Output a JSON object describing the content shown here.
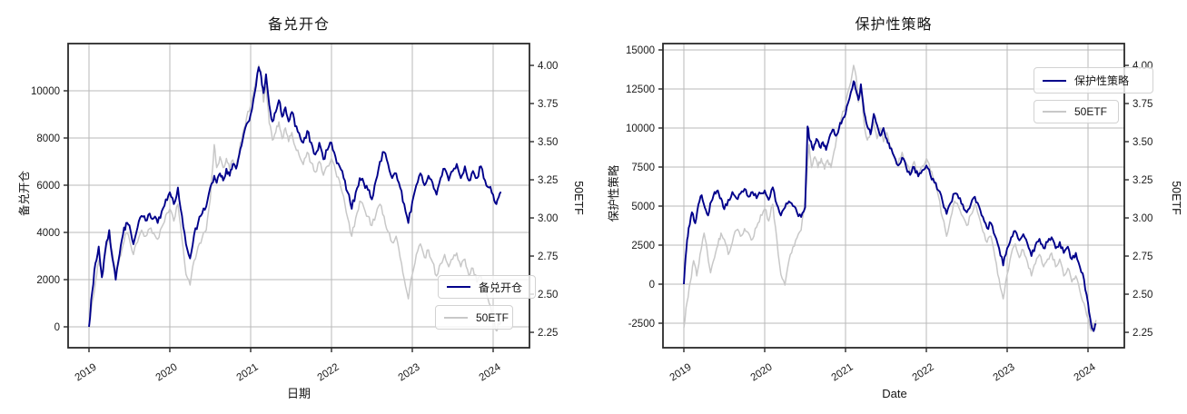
{
  "page": {
    "background": "#ffffff"
  },
  "colors": {
    "strategy_line": "#00008b",
    "etf_line": "#c8c8c8",
    "grid": "#bababa",
    "spine": "#2a2a2a",
    "text": "#1a1a1a"
  },
  "chart_data": [
    {
      "type": "line",
      "title": "备兑开仓",
      "xlabel": "日期",
      "ylabel_left": "备兑开仓",
      "ylabel_right": "50ETF",
      "grid": true,
      "legend_position": "lower right",
      "xlim": [
        2018.74,
        2024.45
      ],
      "x_ticks": [
        2019,
        2020,
        2021,
        2022,
        2023,
        2024
      ],
      "left_axis": {
        "label": "备兑开仓",
        "ticks": [
          0,
          2000,
          4000,
          6000,
          8000,
          10000
        ],
        "range": [
          -885,
          12000
        ]
      },
      "right_axis": {
        "label": "50ETF",
        "ticks": [
          2.25,
          2.5,
          2.75,
          3.0,
          3.25,
          3.5,
          3.75,
          4.0
        ],
        "range": [
          2.149,
          4.143
        ]
      },
      "legend": {
        "entries": [
          {
            "label": "备兑开仓",
            "color": "#00008b"
          },
          {
            "label": "50ETF",
            "color": "#c8c8c8"
          }
        ]
      },
      "series": [
        {
          "name": "50ETF",
          "data_key": "etf50",
          "axis": "right",
          "color": "#c8c8c8",
          "width": 1.5,
          "jitter": 0.032
        },
        {
          "name": "备兑开仓",
          "data_key": "covered_call",
          "axis": "left",
          "color": "#00008b",
          "width": 1.9,
          "jitter": 240
        }
      ]
    },
    {
      "type": "line",
      "title": "保护性策略",
      "xlabel": "Date",
      "ylabel_left": "保护性策略",
      "ylabel_right": "50ETF",
      "grid": true,
      "legend_position": "upper right",
      "xlim": [
        2018.74,
        2024.45
      ],
      "x_ticks": [
        2019,
        2020,
        2021,
        2022,
        2023,
        2024
      ],
      "left_axis": {
        "label": "保护性策略",
        "ticks": [
          -2500,
          0,
          2500,
          5000,
          7500,
          10000,
          12500,
          15000
        ],
        "range": [
          -4070,
          15407
        ]
      },
      "right_axis": {
        "label": "50ETF",
        "ticks": [
          2.25,
          2.5,
          2.75,
          3.0,
          3.25,
          3.5,
          3.75,
          4.0
        ],
        "range": [
          2.149,
          4.143
        ]
      },
      "legend": {
        "entries": [
          {
            "label": "保护性策略",
            "color": "#00008b"
          },
          {
            "label": "50ETF",
            "color": "#c8c8c8"
          }
        ]
      },
      "series": [
        {
          "name": "50ETF",
          "data_key": "etf50",
          "axis": "right",
          "color": "#c8c8c8",
          "width": 1.5,
          "jitter": 0.032
        },
        {
          "name": "保护性策略",
          "data_key": "protective",
          "axis": "left",
          "color": "#00008b",
          "width": 1.9,
          "jitter": 300
        }
      ]
    }
  ],
  "series_data": {
    "etf50": [
      [
        2019.0,
        2.28
      ],
      [
        2019.04,
        2.45
      ],
      [
        2019.08,
        2.58
      ],
      [
        2019.12,
        2.72
      ],
      [
        2019.16,
        2.62
      ],
      [
        2019.2,
        2.76
      ],
      [
        2019.25,
        2.9
      ],
      [
        2019.29,
        2.78
      ],
      [
        2019.33,
        2.64
      ],
      [
        2019.38,
        2.74
      ],
      [
        2019.42,
        2.82
      ],
      [
        2019.46,
        2.9
      ],
      [
        2019.5,
        2.86
      ],
      [
        2019.55,
        2.76
      ],
      [
        2019.6,
        2.84
      ],
      [
        2019.65,
        2.92
      ],
      [
        2019.7,
        2.88
      ],
      [
        2019.75,
        2.93
      ],
      [
        2019.8,
        2.9
      ],
      [
        2019.85,
        2.86
      ],
      [
        2019.9,
        2.94
      ],
      [
        2019.95,
        3.02
      ],
      [
        2020.0,
        3.06
      ],
      [
        2020.05,
        2.98
      ],
      [
        2020.1,
        3.09
      ],
      [
        2020.15,
        2.86
      ],
      [
        2020.2,
        2.63
      ],
      [
        2020.25,
        2.56
      ],
      [
        2020.3,
        2.72
      ],
      [
        2020.35,
        2.81
      ],
      [
        2020.4,
        2.87
      ],
      [
        2020.45,
        2.92
      ],
      [
        2020.5,
        3.12
      ],
      [
        2020.55,
        3.48
      ],
      [
        2020.58,
        3.33
      ],
      [
        2020.62,
        3.4
      ],
      [
        2020.66,
        3.33
      ],
      [
        2020.7,
        3.39
      ],
      [
        2020.74,
        3.32
      ],
      [
        2020.78,
        3.38
      ],
      [
        2020.82,
        3.33
      ],
      [
        2020.86,
        3.44
      ],
      [
        2020.9,
        3.55
      ],
      [
        2020.95,
        3.66
      ],
      [
        2021.0,
        3.74
      ],
      [
        2021.05,
        3.86
      ],
      [
        2021.1,
        4.0
      ],
      [
        2021.13,
        3.93
      ],
      [
        2021.16,
        3.76
      ],
      [
        2021.19,
        3.86
      ],
      [
        2021.23,
        3.62
      ],
      [
        2021.27,
        3.51
      ],
      [
        2021.31,
        3.56
      ],
      [
        2021.35,
        3.63
      ],
      [
        2021.39,
        3.52
      ],
      [
        2021.43,
        3.59
      ],
      [
        2021.47,
        3.5
      ],
      [
        2021.51,
        3.56
      ],
      [
        2021.55,
        3.47
      ],
      [
        2021.6,
        3.41
      ],
      [
        2021.65,
        3.35
      ],
      [
        2021.7,
        3.43
      ],
      [
        2021.75,
        3.36
      ],
      [
        2021.8,
        3.3
      ],
      [
        2021.85,
        3.37
      ],
      [
        2021.9,
        3.28
      ],
      [
        2021.95,
        3.34
      ],
      [
        2022.0,
        3.39
      ],
      [
        2022.05,
        3.31
      ],
      [
        2022.1,
        3.24
      ],
      [
        2022.15,
        3.14
      ],
      [
        2022.2,
        3.0
      ],
      [
        2022.25,
        2.88
      ],
      [
        2022.3,
        3.0
      ],
      [
        2022.35,
        3.11
      ],
      [
        2022.4,
        3.07
      ],
      [
        2022.45,
        3.01
      ],
      [
        2022.5,
        2.95
      ],
      [
        2022.55,
        3.02
      ],
      [
        2022.6,
        3.09
      ],
      [
        2022.65,
        3.01
      ],
      [
        2022.7,
        2.91
      ],
      [
        2022.75,
        2.84
      ],
      [
        2022.8,
        2.88
      ],
      [
        2022.85,
        2.74
      ],
      [
        2022.9,
        2.6
      ],
      [
        2022.95,
        2.47
      ],
      [
        2023.0,
        2.63
      ],
      [
        2023.05,
        2.76
      ],
      [
        2023.1,
        2.83
      ],
      [
        2023.15,
        2.74
      ],
      [
        2023.2,
        2.79
      ],
      [
        2023.25,
        2.71
      ],
      [
        2023.3,
        2.62
      ],
      [
        2023.35,
        2.7
      ],
      [
        2023.4,
        2.76
      ],
      [
        2023.45,
        2.68
      ],
      [
        2023.5,
        2.73
      ],
      [
        2023.55,
        2.77
      ],
      [
        2023.6,
        2.68
      ],
      [
        2023.65,
        2.73
      ],
      [
        2023.7,
        2.62
      ],
      [
        2023.75,
        2.67
      ],
      [
        2023.8,
        2.58
      ],
      [
        2023.85,
        2.62
      ],
      [
        2023.9,
        2.52
      ],
      [
        2023.95,
        2.44
      ],
      [
        2024.0,
        2.34
      ],
      [
        2024.04,
        2.26
      ],
      [
        2024.07,
        2.31
      ],
      [
        2024.1,
        2.33
      ]
    ],
    "covered_call": [
      [
        2019.0,
        0
      ],
      [
        2019.04,
        1500
      ],
      [
        2019.08,
        2700
      ],
      [
        2019.12,
        3400
      ],
      [
        2019.16,
        2100
      ],
      [
        2019.2,
        3200
      ],
      [
        2019.25,
        4100
      ],
      [
        2019.29,
        2900
      ],
      [
        2019.33,
        2000
      ],
      [
        2019.38,
        3100
      ],
      [
        2019.42,
        3900
      ],
      [
        2019.46,
        4400
      ],
      [
        2019.5,
        4300
      ],
      [
        2019.55,
        3500
      ],
      [
        2019.6,
        4200
      ],
      [
        2019.65,
        4700
      ],
      [
        2019.7,
        4500
      ],
      [
        2019.75,
        4800
      ],
      [
        2019.8,
        4600
      ],
      [
        2019.85,
        4400
      ],
      [
        2019.9,
        4900
      ],
      [
        2019.95,
        5400
      ],
      [
        2020.0,
        5700
      ],
      [
        2020.05,
        5200
      ],
      [
        2020.1,
        5900
      ],
      [
        2020.15,
        4700
      ],
      [
        2020.2,
        3500
      ],
      [
        2020.25,
        2900
      ],
      [
        2020.3,
        3900
      ],
      [
        2020.35,
        4400
      ],
      [
        2020.4,
        4800
      ],
      [
        2020.45,
        5100
      ],
      [
        2020.5,
        5900
      ],
      [
        2020.55,
        6400
      ],
      [
        2020.58,
        6100
      ],
      [
        2020.62,
        6500
      ],
      [
        2020.66,
        6200
      ],
      [
        2020.7,
        6700
      ],
      [
        2020.74,
        6400
      ],
      [
        2020.78,
        6900
      ],
      [
        2020.82,
        6700
      ],
      [
        2020.86,
        7300
      ],
      [
        2020.9,
        7900
      ],
      [
        2020.95,
        8600
      ],
      [
        2021.0,
        9000
      ],
      [
        2021.05,
        9900
      ],
      [
        2021.1,
        11000
      ],
      [
        2021.13,
        10600
      ],
      [
        2021.16,
        9900
      ],
      [
        2021.19,
        10700
      ],
      [
        2021.23,
        9400
      ],
      [
        2021.27,
        8700
      ],
      [
        2021.31,
        9100
      ],
      [
        2021.35,
        9600
      ],
      [
        2021.39,
        8900
      ],
      [
        2021.43,
        9300
      ],
      [
        2021.47,
        8700
      ],
      [
        2021.51,
        9100
      ],
      [
        2021.55,
        8500
      ],
      [
        2021.6,
        8200
      ],
      [
        2021.65,
        7800
      ],
      [
        2021.7,
        8300
      ],
      [
        2021.75,
        7800
      ],
      [
        2021.8,
        7300
      ],
      [
        2021.85,
        7800
      ],
      [
        2021.9,
        7100
      ],
      [
        2021.95,
        7500
      ],
      [
        2022.0,
        7800
      ],
      [
        2022.05,
        7200
      ],
      [
        2022.1,
        6800
      ],
      [
        2022.15,
        6300
      ],
      [
        2022.2,
        5700
      ],
      [
        2022.25,
        5000
      ],
      [
        2022.3,
        5700
      ],
      [
        2022.35,
        6300
      ],
      [
        2022.4,
        6100
      ],
      [
        2022.45,
        5800
      ],
      [
        2022.5,
        5400
      ],
      [
        2022.55,
        6200
      ],
      [
        2022.6,
        7000
      ],
      [
        2022.65,
        7400
      ],
      [
        2022.7,
        6900
      ],
      [
        2022.75,
        6300
      ],
      [
        2022.8,
        6500
      ],
      [
        2022.85,
        5900
      ],
      [
        2022.9,
        5200
      ],
      [
        2022.95,
        4400
      ],
      [
        2023.0,
        5300
      ],
      [
        2023.05,
        6000
      ],
      [
        2023.1,
        6500
      ],
      [
        2023.15,
        6000
      ],
      [
        2023.2,
        6400
      ],
      [
        2023.25,
        6100
      ],
      [
        2023.3,
        5600
      ],
      [
        2023.35,
        6300
      ],
      [
        2023.4,
        6700
      ],
      [
        2023.45,
        6200
      ],
      [
        2023.5,
        6600
      ],
      [
        2023.55,
        6900
      ],
      [
        2023.6,
        6300
      ],
      [
        2023.65,
        6800
      ],
      [
        2023.7,
        6200
      ],
      [
        2023.75,
        6600
      ],
      [
        2023.8,
        6300
      ],
      [
        2023.85,
        6800
      ],
      [
        2023.9,
        6200
      ],
      [
        2023.95,
        5900
      ],
      [
        2024.0,
        5600
      ],
      [
        2024.04,
        5200
      ],
      [
        2024.07,
        5500
      ],
      [
        2024.1,
        5700
      ]
    ],
    "protective": [
      [
        2019.0,
        0
      ],
      [
        2019.03,
        2200
      ],
      [
        2019.06,
        3600
      ],
      [
        2019.1,
        4600
      ],
      [
        2019.14,
        3900
      ],
      [
        2019.18,
        5100
      ],
      [
        2019.22,
        5700
      ],
      [
        2019.26,
        4900
      ],
      [
        2019.3,
        4400
      ],
      [
        2019.34,
        5300
      ],
      [
        2019.38,
        5900
      ],
      [
        2019.42,
        6000
      ],
      [
        2019.46,
        5500
      ],
      [
        2019.5,
        4800
      ],
      [
        2019.55,
        5400
      ],
      [
        2019.6,
        5900
      ],
      [
        2019.65,
        5500
      ],
      [
        2019.7,
        5800
      ],
      [
        2019.75,
        6100
      ],
      [
        2019.8,
        5600
      ],
      [
        2019.85,
        5900
      ],
      [
        2019.9,
        5500
      ],
      [
        2019.95,
        5800
      ],
      [
        2020.0,
        6000
      ],
      [
        2020.05,
        5400
      ],
      [
        2020.1,
        6200
      ],
      [
        2020.15,
        5100
      ],
      [
        2020.2,
        4400
      ],
      [
        2020.25,
        4900
      ],
      [
        2020.3,
        5300
      ],
      [
        2020.35,
        5000
      ],
      [
        2020.4,
        4600
      ],
      [
        2020.45,
        4300
      ],
      [
        2020.5,
        4900
      ],
      [
        2020.53,
        10100
      ],
      [
        2020.56,
        9200
      ],
      [
        2020.6,
        8600
      ],
      [
        2020.64,
        9300
      ],
      [
        2020.68,
        8800
      ],
      [
        2020.72,
        9100
      ],
      [
        2020.76,
        8600
      ],
      [
        2020.8,
        9400
      ],
      [
        2020.84,
        9900
      ],
      [
        2020.88,
        9500
      ],
      [
        2020.92,
        10000
      ],
      [
        2020.96,
        10500
      ],
      [
        2021.0,
        10900
      ],
      [
        2021.05,
        11900
      ],
      [
        2021.1,
        13000
      ],
      [
        2021.13,
        12400
      ],
      [
        2021.16,
        11800
      ],
      [
        2021.19,
        12800
      ],
      [
        2021.23,
        11000
      ],
      [
        2021.27,
        10100
      ],
      [
        2021.31,
        9600
      ],
      [
        2021.35,
        10900
      ],
      [
        2021.39,
        10200
      ],
      [
        2021.43,
        9500
      ],
      [
        2021.47,
        10000
      ],
      [
        2021.51,
        9300
      ],
      [
        2021.55,
        8700
      ],
      [
        2021.6,
        8200
      ],
      [
        2021.65,
        7600
      ],
      [
        2021.7,
        8100
      ],
      [
        2021.75,
        7500
      ],
      [
        2021.8,
        7000
      ],
      [
        2021.85,
        7500
      ],
      [
        2021.9,
        6900
      ],
      [
        2021.95,
        7300
      ],
      [
        2022.0,
        7600
      ],
      [
        2022.05,
        7000
      ],
      [
        2022.1,
        6500
      ],
      [
        2022.15,
        6000
      ],
      [
        2022.2,
        5300
      ],
      [
        2022.25,
        4500
      ],
      [
        2022.3,
        5200
      ],
      [
        2022.35,
        5800
      ],
      [
        2022.4,
        5500
      ],
      [
        2022.45,
        5100
      ],
      [
        2022.5,
        4600
      ],
      [
        2022.55,
        5100
      ],
      [
        2022.6,
        5600
      ],
      [
        2022.65,
        5000
      ],
      [
        2022.7,
        4300
      ],
      [
        2022.75,
        3600
      ],
      [
        2022.8,
        3900
      ],
      [
        2022.85,
        3100
      ],
      [
        2022.9,
        2300
      ],
      [
        2022.95,
        1200
      ],
      [
        2023.0,
        2300
      ],
      [
        2023.05,
        3000
      ],
      [
        2023.1,
        3400
      ],
      [
        2023.15,
        2800
      ],
      [
        2023.2,
        3200
      ],
      [
        2023.25,
        2600
      ],
      [
        2023.3,
        1800
      ],
      [
        2023.35,
        2500
      ],
      [
        2023.4,
        2900
      ],
      [
        2023.45,
        2300
      ],
      [
        2023.5,
        2700
      ],
      [
        2023.55,
        3000
      ],
      [
        2023.6,
        2300
      ],
      [
        2023.65,
        2700
      ],
      [
        2023.7,
        2000
      ],
      [
        2023.75,
        2400
      ],
      [
        2023.8,
        1600
      ],
      [
        2023.85,
        2000
      ],
      [
        2023.9,
        1100
      ],
      [
        2023.95,
        300
      ],
      [
        2024.0,
        -1200
      ],
      [
        2024.04,
        -2600
      ],
      [
        2024.07,
        -3000
      ],
      [
        2024.1,
        -2600
      ]
    ]
  }
}
